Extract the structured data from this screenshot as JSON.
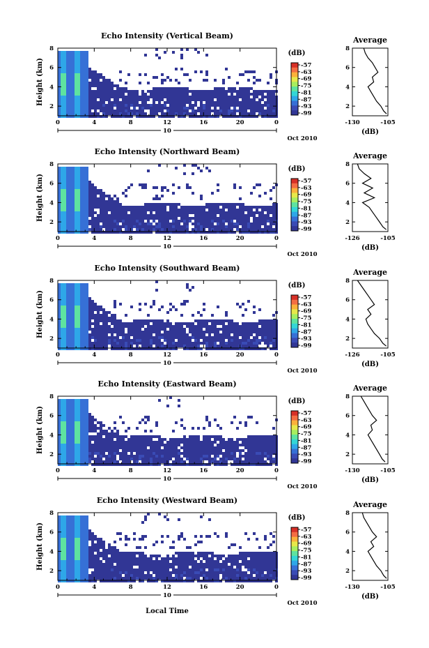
{
  "figure": {
    "x_axis_title": "Local Time",
    "date_label": "Oct 2010",
    "colorbar_unit": "(dB)",
    "colorbar_ticks": [
      "-57",
      "-63",
      "-69",
      "-75",
      "-81",
      "-87",
      "-93",
      "-99"
    ],
    "avg_title": "Average",
    "avg_xlabel": "(dB)"
  },
  "chart_data": [
    {
      "type": "heatmap",
      "title": "Echo Intensity (Vertical Beam)",
      "ylabel": "Height (km)",
      "x_ticks": [
        "0",
        "4",
        "8",
        "12",
        "16",
        "20",
        "0"
      ],
      "day_label": "10",
      "y_ticks": [
        "8",
        "6",
        "4",
        "2"
      ],
      "xlim_hours": [
        0,
        24
      ],
      "ylim_km": [
        1,
        8
      ],
      "colorscale_db": [
        -99,
        -57
      ],
      "avg_profile": {
        "x_ticks": [
          "-130",
          "-105"
        ],
        "y_ticks": [
          "8",
          "6",
          "4",
          "2"
        ],
        "xlim_db": [
          -130,
          -105
        ],
        "height_km": [
          1.2,
          1.5,
          2.0,
          2.5,
          3.0,
          3.5,
          4.0,
          4.5,
          5.0,
          5.5,
          6.0,
          6.5,
          7.0,
          7.5,
          8.0
        ],
        "db": [
          -106,
          -108,
          -110,
          -113,
          -115,
          -117,
          -119,
          -115,
          -116,
          -112,
          -114,
          -116,
          -119,
          -121,
          -122
        ]
      }
    },
    {
      "type": "heatmap",
      "title": "Echo Intensity (Northward Beam)",
      "ylabel": "Height (km)",
      "x_ticks": [
        "0",
        "4",
        "8",
        "12",
        "16",
        "20",
        "0"
      ],
      "day_label": "10",
      "y_ticks": [
        "8",
        "6",
        "4",
        "2"
      ],
      "xlim_hours": [
        0,
        24
      ],
      "ylim_km": [
        1,
        8
      ],
      "colorscale_db": [
        -99,
        -57
      ],
      "avg_profile": {
        "x_ticks": [
          "-126",
          "-105"
        ],
        "y_ticks": [
          "8",
          "6",
          "4",
          "2"
        ],
        "xlim_db": [
          -126,
          -105
        ],
        "height_km": [
          1.2,
          1.5,
          2.0,
          2.5,
          3.0,
          3.5,
          4.0,
          4.5,
          5.0,
          5.5,
          6.0,
          6.5,
          7.0,
          7.5,
          8.0
        ],
        "db": [
          -106,
          -108,
          -110,
          -112,
          -114,
          -116,
          -120,
          -113,
          -119,
          -114,
          -120,
          -115,
          -119,
          -122,
          -123
        ]
      }
    },
    {
      "type": "heatmap",
      "title": "Echo Intensity (Southward Beam)",
      "ylabel": "Height (km)",
      "x_ticks": [
        "0",
        "4",
        "8",
        "12",
        "16",
        "20",
        "0"
      ],
      "day_label": "10",
      "y_ticks": [
        "8",
        "6",
        "4",
        "2"
      ],
      "xlim_hours": [
        0,
        24
      ],
      "ylim_km": [
        1,
        8
      ],
      "colorscale_db": [
        -99,
        -57
      ],
      "avg_profile": {
        "x_ticks": [
          "-126",
          "-105"
        ],
        "y_ticks": [
          "8",
          "6",
          "4",
          "2"
        ],
        "xlim_db": [
          -126,
          -105
        ],
        "height_km": [
          1.2,
          1.5,
          2.0,
          2.5,
          3.0,
          3.5,
          4.0,
          4.5,
          5.0,
          5.5,
          6.0,
          6.5,
          7.0,
          7.5,
          8.0
        ],
        "db": [
          -106,
          -108,
          -110,
          -113,
          -115,
          -117,
          -118,
          -115,
          -117,
          -113,
          -115,
          -117,
          -119,
          -121,
          -123
        ]
      }
    },
    {
      "type": "heatmap",
      "title": "Echo Intensity (Eastward Beam)",
      "ylabel": "Height (km)",
      "x_ticks": [
        "0",
        "4",
        "8",
        "12",
        "16",
        "20",
        "0"
      ],
      "day_label": "10",
      "y_ticks": [
        "8",
        "6",
        "4",
        "2"
      ],
      "xlim_hours": [
        0,
        24
      ],
      "ylim_km": [
        1,
        8
      ],
      "colorscale_db": [
        -99,
        -57
      ],
      "avg_profile": {
        "x_ticks": [
          "-130",
          "-105"
        ],
        "y_ticks": [
          "8",
          "6",
          "4",
          "2"
        ],
        "xlim_db": [
          -130,
          -105
        ],
        "height_km": [
          1.2,
          1.5,
          2.0,
          2.5,
          3.0,
          3.5,
          4.0,
          4.5,
          5.0,
          5.5,
          6.0,
          6.5,
          7.0,
          7.5,
          8.0
        ],
        "db": [
          -107,
          -109,
          -111,
          -113,
          -115,
          -117,
          -119,
          -116,
          -117,
          -113,
          -116,
          -118,
          -120,
          -122,
          -124
        ]
      }
    },
    {
      "type": "heatmap",
      "title": "Echo Intensity (Westward Beam)",
      "ylabel": "Height (km)",
      "x_ticks": [
        "0",
        "4",
        "8",
        "12",
        "16",
        "20",
        "0"
      ],
      "day_label": "10",
      "y_ticks": [
        "8",
        "6",
        "4",
        "2"
      ],
      "xlim_hours": [
        0,
        24
      ],
      "ylim_km": [
        1,
        8
      ],
      "colorscale_db": [
        -99,
        -57
      ],
      "avg_profile": {
        "x_ticks": [
          "-130",
          "-105"
        ],
        "y_ticks": [
          "8",
          "6",
          "4",
          "2"
        ],
        "xlim_db": [
          -130,
          -105
        ],
        "height_km": [
          1.2,
          1.5,
          2.0,
          2.5,
          3.0,
          3.5,
          4.0,
          4.5,
          5.0,
          5.5,
          6.0,
          6.5,
          7.0,
          7.5,
          8.0
        ],
        "db": [
          -106,
          -108,
          -110,
          -113,
          -115,
          -117,
          -119,
          -115,
          -117,
          -113,
          -116,
          -118,
          -120,
          -122,
          -123
        ]
      }
    }
  ]
}
